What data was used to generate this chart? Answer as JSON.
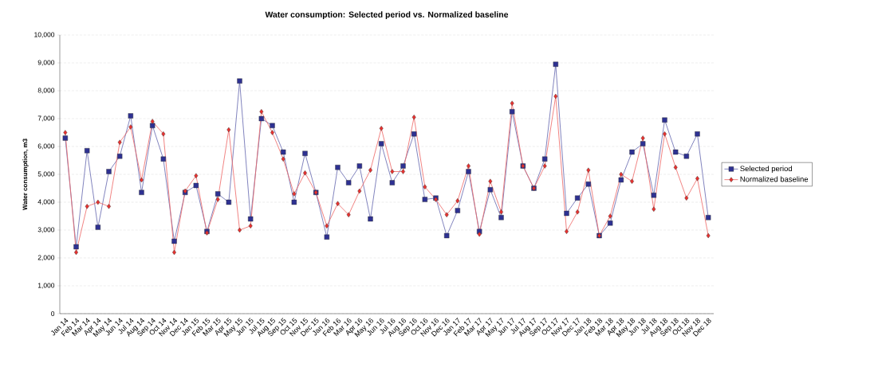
{
  "chart_data": {
    "type": "line",
    "title": "Water consumption: Selected period vs. Normalized baseline",
    "ylabel": "Water consumption, m3",
    "categories": [
      "Jan 14",
      "Feb 14",
      "Mar 14",
      "Apr 14",
      "May 14",
      "Jun 14",
      "Jul 14",
      "Aug 14",
      "Sep 14",
      "Oct 14",
      "Nov 14",
      "Dec 14",
      "Jan 15",
      "Feb 15",
      "Mar 15",
      "Apr 15",
      "May 15",
      "Jun 15",
      "Jul 15",
      "Aug 15",
      "Sep 15",
      "Oct 15",
      "Nov 15",
      "Dec 15",
      "Jan 16",
      "Feb 16",
      "Mar 16",
      "Apr 16",
      "May 16",
      "Jun 16",
      "Jul 16",
      "Aug 16",
      "Sep 16",
      "Oct 16",
      "Nov 16",
      "Dec 16",
      "Jan 17",
      "Feb 17",
      "Mar 17",
      "Apr 17",
      "May 17",
      "Jun 17",
      "Jul 17",
      "Aug 17",
      "Sep 17",
      "Oct 17",
      "Nov 17",
      "Dec 17",
      "Jan 18",
      "Feb 18",
      "Mar 18",
      "Apr 18",
      "May 18",
      "Jun 18",
      "Jul 18",
      "Aug 18",
      "Sep 18",
      "Oct 18",
      "Nov 18",
      "Dec 18"
    ],
    "series": [
      {
        "name": "Selected period",
        "color": "#2e3192",
        "marker": "square",
        "values": [
          6300,
          2400,
          5850,
          3100,
          5100,
          5650,
          7100,
          4350,
          6750,
          5550,
          2600,
          4350,
          4600,
          2950,
          4300,
          4000,
          8350,
          3400,
          7000,
          6750,
          5800,
          4000,
          5750,
          4350,
          2750,
          5250,
          4700,
          5300,
          3400,
          6100,
          4700,
          5300,
          6450,
          4100,
          4150,
          2800,
          3700,
          5100,
          2950,
          4450,
          3450,
          7250,
          5300,
          4500,
          5550,
          8950,
          3600,
          4150,
          4650,
          2800,
          3250,
          4800,
          5800,
          6100,
          4250,
          6950,
          5800,
          5650,
          6450,
          3450
        ]
      },
      {
        "name": "Normalized baseline",
        "color": "#e8312f",
        "marker": "diamond",
        "values": [
          6500,
          2200,
          3850,
          4000,
          3850,
          6150,
          6700,
          4800,
          6900,
          6450,
          2200,
          4400,
          4950,
          2900,
          4100,
          6600,
          3000,
          3150,
          7250,
          6500,
          5550,
          4300,
          5050,
          4350,
          3150,
          3950,
          3550,
          4400,
          5150,
          6650,
          5100,
          5100,
          7050,
          4550,
          4100,
          3550,
          4050,
          5300,
          2850,
          4750,
          3650,
          7550,
          5300,
          4500,
          5300,
          7800,
          2950,
          3650,
          5150,
          2800,
          3500,
          5000,
          4750,
          6300,
          3750,
          6450,
          5250,
          4150,
          4850,
          2800
        ]
      }
    ],
    "ylim": [
      0,
      10000
    ],
    "yticks": [
      {
        "value": 0,
        "label": "0"
      },
      {
        "value": 1000,
        "label": "1,000"
      },
      {
        "value": 2000,
        "label": "2,000"
      },
      {
        "value": 3000,
        "label": "3,000"
      },
      {
        "value": 4000,
        "label": "4,000"
      },
      {
        "value": 5000,
        "label": "5,000"
      },
      {
        "value": 6000,
        "label": "6,000"
      },
      {
        "value": 7000,
        "label": "7,000"
      },
      {
        "value": 8000,
        "label": "8,000"
      },
      {
        "value": 9000,
        "label": "9,000"
      },
      {
        "value": 10000,
        "label": "10,000"
      }
    ],
    "grid": "y",
    "legend": "right",
    "line_style": "solid"
  }
}
